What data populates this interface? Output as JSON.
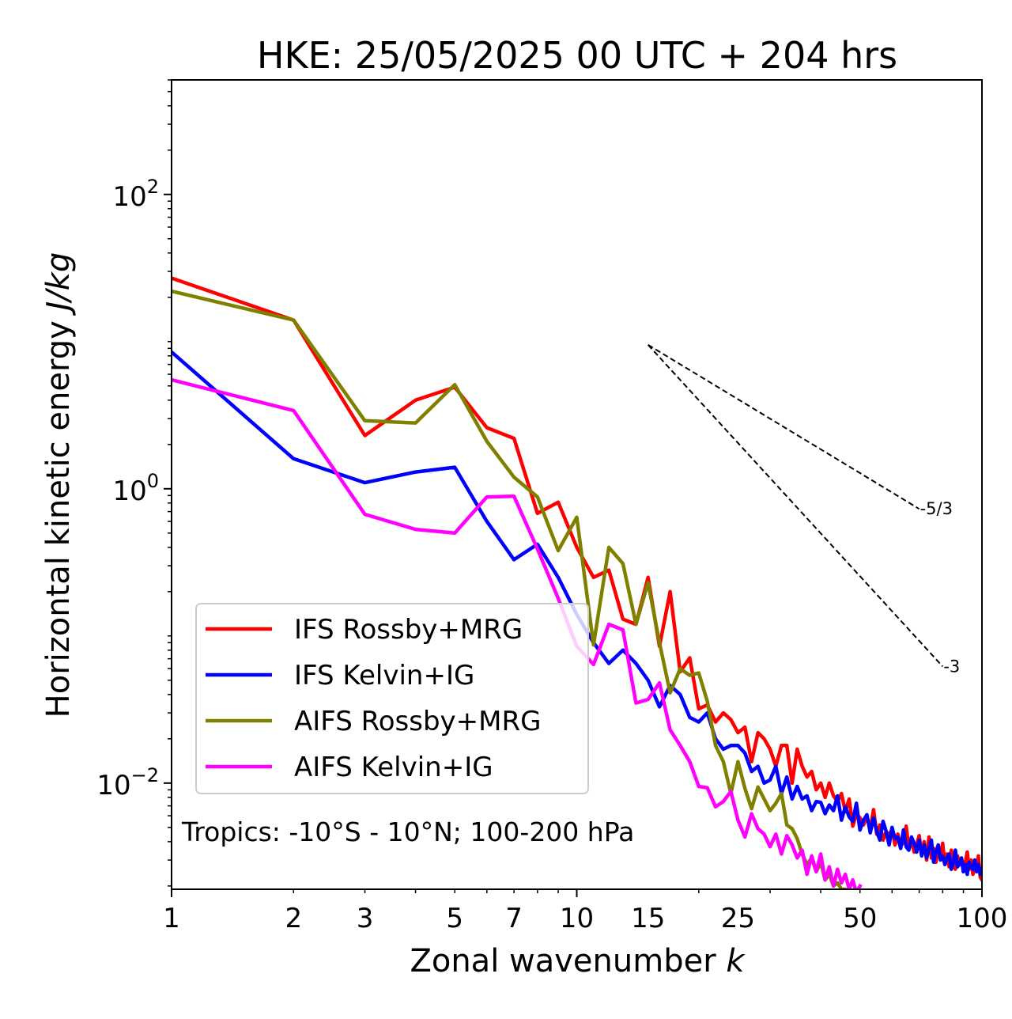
{
  "chart_data": {
    "type": "line",
    "title": "HKE: 25/05/2025 00 UTC + 204 hrs",
    "xlabel": "Zonal wavenumber",
    "xlabel_var": "k",
    "ylabel": "Horizontal kinetic energy",
    "ylabel_unit": "J/kg",
    "xscale": "log",
    "yscale": "log",
    "xlim": [
      1,
      100
    ],
    "ylim": [
      0.0019,
      600
    ],
    "x_ticks": [
      1,
      2,
      3,
      5,
      7,
      10,
      15,
      25,
      50,
      100
    ],
    "x_tick_labels": [
      "1",
      "2",
      "3",
      "5",
      "7",
      "10",
      "15",
      "25",
      "50",
      "100"
    ],
    "y_ticks": [
      0.01,
      1,
      100
    ],
    "y_tick_labels": [
      {
        "base": "10",
        "exp": "−2"
      },
      {
        "base": "10",
        "exp": "0"
      },
      {
        "base": "10",
        "exp": "2"
      }
    ],
    "grid": false,
    "legend_position": "lower-left",
    "annotation": "Tropics: -10°S - 10°N; 100-200 hPa",
    "series": [
      {
        "name": "IFS Rossby+MRG",
        "color": "#ff0000",
        "x": [
          1,
          2,
          3,
          4,
          5,
          6,
          7,
          8,
          9,
          10,
          11,
          12,
          13,
          14,
          15,
          16,
          17,
          18,
          19,
          20,
          21,
          22,
          23,
          24,
          25,
          26,
          27,
          28,
          29,
          30,
          31,
          32,
          33,
          34,
          35,
          36,
          37,
          38,
          39,
          40,
          41,
          42,
          43,
          44,
          45,
          46,
          47,
          48,
          49,
          50,
          51,
          52,
          53,
          54,
          55,
          56,
          57,
          58,
          59,
          60,
          61,
          62,
          63,
          64,
          65,
          66,
          67,
          68,
          69,
          70,
          71,
          72,
          73,
          74,
          75,
          76,
          77,
          78,
          79,
          80,
          81,
          82,
          83,
          84,
          85,
          86,
          87,
          88,
          89,
          90,
          91,
          92,
          93,
          94,
          95,
          96,
          97,
          98,
          99,
          100
        ],
        "y": [
          27,
          14,
          2.3,
          4.0,
          4.9,
          2.6,
          2.2,
          0.68,
          0.81,
          0.4,
          0.25,
          0.28,
          0.13,
          0.12,
          0.25,
          0.085,
          0.2,
          0.057,
          0.071,
          0.032,
          0.034,
          0.026,
          0.03,
          0.027,
          0.022,
          0.024,
          0.014,
          0.022,
          0.02,
          0.017,
          0.013,
          0.018,
          0.018,
          0.01,
          0.017,
          0.013,
          0.011,
          0.012,
          0.009,
          0.01,
          0.008,
          0.01,
          0.0082,
          0.0075,
          0.0085,
          0.0064,
          0.0078,
          0.0051,
          0.0062,
          0.0058,
          0.0052,
          0.0059,
          0.0049,
          0.0066,
          0.0045,
          0.0052,
          0.0041,
          0.0047,
          0.0044,
          0.0049,
          0.0038,
          0.0045,
          0.0037,
          0.004,
          0.0051,
          0.0036,
          0.0041,
          0.0034,
          0.0038,
          0.0044,
          0.0033,
          0.004,
          0.003,
          0.0043,
          0.0031,
          0.0036,
          0.0029,
          0.0037,
          0.0032,
          0.0039,
          0.0028,
          0.0033,
          0.0027,
          0.0035,
          0.003,
          0.0026,
          0.0032,
          0.0028,
          0.0031,
          0.0025,
          0.0029,
          0.0034,
          0.0026,
          0.003,
          0.0024,
          0.0028,
          0.0025,
          0.0032,
          0.0023,
          0.0022
        ]
      },
      {
        "name": "IFS Kelvin+IG",
        "color": "#0000ff",
        "x": [
          1,
          2,
          3,
          4,
          5,
          6,
          7,
          8,
          9,
          10,
          11,
          12,
          13,
          14,
          15,
          16,
          17,
          18,
          19,
          20,
          21,
          22,
          23,
          24,
          25,
          26,
          27,
          28,
          29,
          30,
          31,
          32,
          33,
          34,
          35,
          36,
          37,
          38,
          39,
          40,
          41,
          42,
          43,
          44,
          45,
          46,
          47,
          48,
          49,
          50,
          51,
          52,
          53,
          54,
          55,
          56,
          57,
          58,
          59,
          60,
          61,
          62,
          63,
          64,
          65,
          66,
          67,
          68,
          69,
          70,
          71,
          72,
          73,
          74,
          75,
          76,
          77,
          78,
          79,
          80,
          81,
          82,
          83,
          84,
          85,
          86,
          87,
          88,
          89,
          90,
          91,
          92,
          93,
          94,
          95,
          96,
          97,
          98,
          99,
          100
        ],
        "y": [
          8.5,
          1.6,
          1.1,
          1.3,
          1.4,
          0.6,
          0.33,
          0.42,
          0.25,
          0.14,
          0.09,
          0.065,
          0.08,
          0.065,
          0.05,
          0.033,
          0.046,
          0.04,
          0.028,
          0.026,
          0.03,
          0.02,
          0.017,
          0.018,
          0.018,
          0.016,
          0.012,
          0.013,
          0.01,
          0.0105,
          0.013,
          0.0085,
          0.011,
          0.0078,
          0.0095,
          0.0078,
          0.0082,
          0.0065,
          0.0075,
          0.0074,
          0.0062,
          0.0071,
          0.0065,
          0.0082,
          0.0056,
          0.0069,
          0.0059,
          0.0055,
          0.0073,
          0.0048,
          0.0056,
          0.0061,
          0.0046,
          0.0058,
          0.0047,
          0.0041,
          0.0055,
          0.0047,
          0.0038,
          0.005,
          0.0042,
          0.0043,
          0.0036,
          0.0048,
          0.0037,
          0.0035,
          0.0043,
          0.0039,
          0.0034,
          0.0041,
          0.0032,
          0.0038,
          0.0031,
          0.0036,
          0.0041,
          0.0029,
          0.0034,
          0.0038,
          0.003,
          0.0032,
          0.0028,
          0.0031,
          0.0033,
          0.0026,
          0.0029,
          0.0035,
          0.0027,
          0.0028,
          0.0031,
          0.0025,
          0.0028,
          0.0024,
          0.0029,
          0.0027,
          0.0026,
          0.003,
          0.0025,
          0.0028,
          0.0024,
          0.0026
        ]
      },
      {
        "name": "AIFS Rossby+MRG",
        "color": "#808000",
        "x": [
          1,
          2,
          3,
          4,
          5,
          6,
          7,
          8,
          9,
          10,
          11,
          12,
          13,
          14,
          15,
          16,
          17,
          18,
          19,
          20,
          21,
          22,
          23,
          24,
          25,
          26,
          27,
          28,
          29,
          30,
          31,
          32,
          33,
          34,
          35,
          36,
          37,
          38,
          39,
          40,
          41,
          42,
          43,
          44,
          45,
          46,
          47,
          48,
          49,
          50
        ],
        "y": [
          22,
          14,
          2.9,
          2.8,
          5.1,
          2.1,
          1.2,
          0.88,
          0.38,
          0.64,
          0.087,
          0.4,
          0.31,
          0.12,
          0.23,
          0.09,
          0.041,
          0.06,
          0.054,
          0.056,
          0.036,
          0.018,
          0.014,
          0.0085,
          0.014,
          0.0092,
          0.0067,
          0.0094,
          0.0078,
          0.0065,
          0.0073,
          0.0085,
          0.0052,
          0.0049,
          0.0042,
          0.0033,
          0.0028,
          0.0031,
          0.0025,
          0.0029,
          0.0022,
          0.0024,
          0.002,
          0.0021,
          0.0019,
          0.0019,
          0.0018,
          0.0018,
          0.0017,
          0.0017
        ]
      },
      {
        "name": "AIFS Kelvin+IG",
        "color": "#ff00ff",
        "x": [
          1,
          2,
          3,
          4,
          5,
          6,
          7,
          8,
          9,
          10,
          11,
          12,
          13,
          14,
          15,
          16,
          17,
          18,
          19,
          20,
          21,
          22,
          23,
          24,
          25,
          26,
          27,
          28,
          29,
          30,
          31,
          32,
          33,
          34,
          35,
          36,
          37,
          38,
          39,
          40,
          41,
          42,
          43,
          44,
          45,
          46,
          47,
          48,
          49,
          50
        ],
        "y": [
          5.5,
          3.4,
          0.67,
          0.53,
          0.5,
          0.88,
          0.89,
          0.39,
          0.18,
          0.085,
          0.064,
          0.12,
          0.11,
          0.035,
          0.037,
          0.048,
          0.023,
          0.018,
          0.014,
          0.0095,
          0.0093,
          0.0069,
          0.0075,
          0.0088,
          0.0056,
          0.0043,
          0.0062,
          0.0049,
          0.0045,
          0.0037,
          0.0045,
          0.0033,
          0.0044,
          0.0038,
          0.0031,
          0.0035,
          0.0024,
          0.0032,
          0.0025,
          0.0033,
          0.0022,
          0.0027,
          0.002,
          0.0026,
          0.0021,
          0.0024,
          0.0019,
          0.0022,
          0.0018,
          0.002
        ]
      }
    ],
    "slope_lines": [
      {
        "label": "-5/3",
        "x": [
          15,
          70
        ],
        "y": [
          9.5,
          0.73
        ]
      },
      {
        "label": "-3",
        "x": [
          15,
          80
        ],
        "y": [
          9.5,
          0.062
        ]
      }
    ]
  }
}
